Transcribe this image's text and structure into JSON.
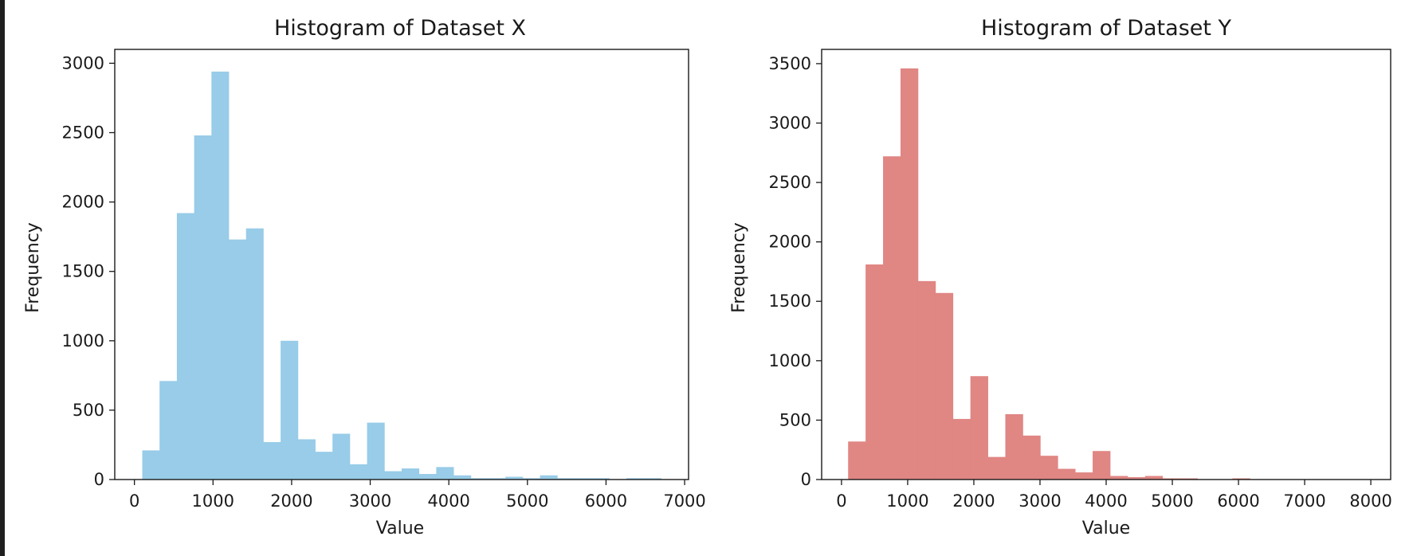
{
  "chart_data": [
    {
      "type": "bar",
      "title": "Histogram of Dataset X",
      "xlabel": "Value",
      "ylabel": "Frequency",
      "color": "#98cce8",
      "xlim": [
        -250,
        7050
      ],
      "ylim": [
        0,
        3100
      ],
      "xticks": [
        0,
        1000,
        2000,
        3000,
        4000,
        5000,
        6000,
        7000
      ],
      "yticks": [
        0,
        500,
        1000,
        1500,
        2000,
        2500,
        3000
      ],
      "bin_start": 100,
      "bin_width": 220,
      "values": [
        210,
        710,
        1920,
        2480,
        2940,
        1730,
        1810,
        270,
        1000,
        290,
        200,
        330,
        110,
        410,
        60,
        80,
        40,
        90,
        30,
        10,
        10,
        20,
        10,
        30,
        10,
        10,
        10,
        0,
        10,
        10
      ],
      "grid": false
    },
    {
      "type": "bar",
      "title": "Histogram of Dataset Y",
      "xlabel": "Value",
      "ylabel": "Frequency",
      "color": "#e08683",
      "xlim": [
        -300,
        8300
      ],
      "ylim": [
        0,
        3620
      ],
      "xticks": [
        0,
        1000,
        2000,
        3000,
        4000,
        5000,
        6000,
        7000,
        8000
      ],
      "yticks": [
        0,
        500,
        1000,
        1500,
        2000,
        2500,
        3000,
        3500
      ],
      "bin_start": 100,
      "bin_width": 264,
      "values": [
        320,
        1810,
        2720,
        3460,
        1670,
        1570,
        510,
        870,
        190,
        550,
        370,
        200,
        90,
        60,
        240,
        30,
        20,
        30,
        10,
        10,
        0,
        0,
        10,
        0,
        0,
        0,
        0,
        0,
        0,
        0
      ],
      "grid": false
    }
  ]
}
